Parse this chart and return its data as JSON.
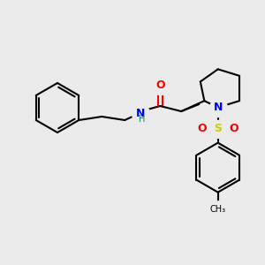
{
  "bg_color": "#ebebeb",
  "bond_color": "#000000",
  "atom_colors": {
    "O": "#ff0000",
    "N": "#0000ff",
    "S": "#cccc00",
    "H": "#008080",
    "C": "#000000"
  },
  "figsize": [
    3.0,
    3.0
  ],
  "dpi": 100
}
